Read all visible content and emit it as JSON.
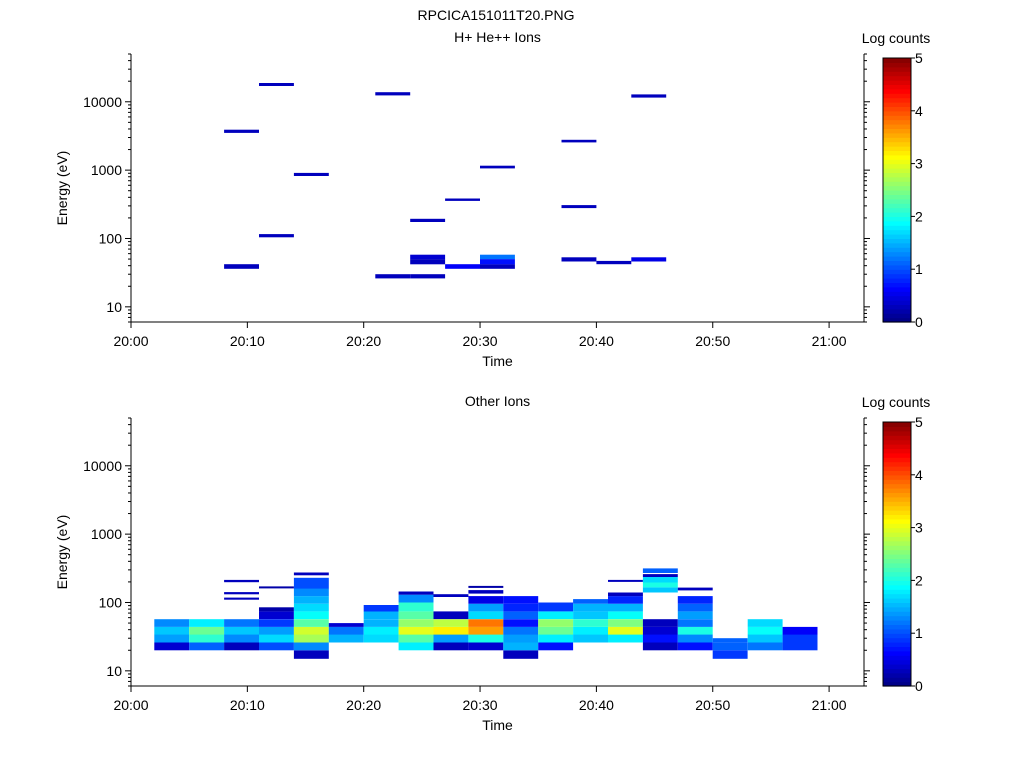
{
  "figure_title": "RPCICA151011T20.PNG",
  "colorbar": {
    "title": "Log counts",
    "range": [
      0,
      5
    ],
    "tick_labels": [
      "0",
      "1",
      "2",
      "3",
      "4",
      "5"
    ],
    "colormap": "jet"
  },
  "colors": {
    "background": "#ffffff",
    "axis": "#000000"
  },
  "chart_data": [
    {
      "type": "heatmap",
      "title": "H+ He++ Ions",
      "xlabel": "Time",
      "ylabel": "Energy (eV)",
      "y_scale": "log",
      "ylim": [
        6,
        50000
      ],
      "xlim": [
        "20:00",
        "21:03"
      ],
      "x_tick_labels": [
        "20:00",
        "20:10",
        "20:20",
        "20:30",
        "20:40",
        "20:50",
        "21:00"
      ],
      "y_tick_labels": [
        "10",
        "100",
        "1000",
        "10000"
      ],
      "cells": [
        {
          "t0": "20:08",
          "t1": "20:11",
          "e_lo": 36,
          "e_hi": 42,
          "value": 0.3
        },
        {
          "t0": "20:08",
          "t1": "20:11",
          "e_lo": 3500,
          "e_hi": 3900,
          "value": 0.3
        },
        {
          "t0": "20:11",
          "t1": "20:14",
          "e_lo": 104,
          "e_hi": 116,
          "value": 0.3
        },
        {
          "t0": "20:11",
          "t1": "20:14",
          "e_lo": 17000,
          "e_hi": 18800,
          "value": 0.3
        },
        {
          "t0": "20:14",
          "t1": "20:17",
          "e_lo": 820,
          "e_hi": 910,
          "value": 0.3
        },
        {
          "t0": "20:21",
          "t1": "20:24",
          "e_lo": 26,
          "e_hi": 30,
          "value": 0.3
        },
        {
          "t0": "20:21",
          "t1": "20:24",
          "e_lo": 12400,
          "e_hi": 13800,
          "value": 0.3
        },
        {
          "t0": "20:24",
          "t1": "20:27",
          "e_lo": 26,
          "e_hi": 30,
          "value": 0.3
        },
        {
          "t0": "20:24",
          "t1": "20:27",
          "e_lo": 42,
          "e_hi": 50,
          "value": 0.3
        },
        {
          "t0": "20:24",
          "t1": "20:27",
          "e_lo": 50,
          "e_hi": 58,
          "value": 0.4
        },
        {
          "t0": "20:24",
          "t1": "20:27",
          "e_lo": 174,
          "e_hi": 194,
          "value": 0.3
        },
        {
          "t0": "20:27",
          "t1": "20:30",
          "e_lo": 36,
          "e_hi": 42,
          "value": 0.6
        },
        {
          "t0": "20:27",
          "t1": "20:30",
          "e_lo": 355,
          "e_hi": 385,
          "value": 0.3
        },
        {
          "t0": "20:30",
          "t1": "20:33",
          "e_lo": 36,
          "e_hi": 42,
          "value": 0.3
        },
        {
          "t0": "20:30",
          "t1": "20:33",
          "e_lo": 42,
          "e_hi": 50,
          "value": 0.7
        },
        {
          "t0": "20:30",
          "t1": "20:33",
          "e_lo": 50,
          "e_hi": 58,
          "value": 1.2
        },
        {
          "t0": "20:30",
          "t1": "20:33",
          "e_lo": 1060,
          "e_hi": 1160,
          "value": 0.3
        },
        {
          "t0": "20:37",
          "t1": "20:40",
          "e_lo": 46,
          "e_hi": 53,
          "value": 0.3
        },
        {
          "t0": "20:37",
          "t1": "20:40",
          "e_lo": 278,
          "e_hi": 308,
          "value": 0.3
        },
        {
          "t0": "20:37",
          "t1": "20:40",
          "e_lo": 2550,
          "e_hi": 2780,
          "value": 0.3
        },
        {
          "t0": "20:40",
          "t1": "20:43",
          "e_lo": 42,
          "e_hi": 47,
          "value": 0.3
        },
        {
          "t0": "20:43",
          "t1": "20:46",
          "e_lo": 46,
          "e_hi": 53,
          "value": 0.5
        },
        {
          "t0": "20:43",
          "t1": "20:46",
          "e_lo": 11500,
          "e_hi": 12800,
          "value": 0.3
        }
      ]
    },
    {
      "type": "heatmap",
      "title": "Other Ions",
      "xlabel": "Time",
      "ylabel": "Energy (eV)",
      "y_scale": "log",
      "ylim": [
        6,
        50000
      ],
      "xlim": [
        "20:00",
        "21:03"
      ],
      "x_tick_labels": [
        "20:00",
        "20:10",
        "20:20",
        "20:30",
        "20:40",
        "20:50",
        "21:00"
      ],
      "y_tick_labels": [
        "10",
        "100",
        "1000",
        "10000"
      ],
      "columns": [
        {
          "t0": "20:02",
          "t1": "20:05",
          "cells": [
            [
              20,
              26,
              0.4
            ],
            [
              26,
              34,
              1.4
            ],
            [
              34,
              44,
              1.6
            ],
            [
              44,
              57,
              1.3
            ]
          ]
        },
        {
          "t0": "20:05",
          "t1": "20:08",
          "cells": [
            [
              20,
              26,
              1.1
            ],
            [
              26,
              34,
              2.1
            ],
            [
              34,
              44,
              2.4
            ],
            [
              44,
              57,
              1.8
            ]
          ]
        },
        {
          "t0": "20:08",
          "t1": "20:11",
          "cells": [
            [
              20,
              26,
              0.3
            ],
            [
              26,
              34,
              1.3
            ],
            [
              34,
              44,
              1.6
            ],
            [
              44,
              57,
              1.2
            ],
            [
              110,
              118,
              0.3
            ],
            [
              132,
              142,
              0.3
            ],
            [
              198,
              214,
              0.3
            ]
          ]
        },
        {
          "t0": "20:11",
          "t1": "20:14",
          "cells": [
            [
              20,
              26,
              1.0
            ],
            [
              26,
              34,
              1.7
            ],
            [
              34,
              44,
              1.4
            ],
            [
              44,
              57,
              0.9
            ],
            [
              57,
              74,
              0.4
            ],
            [
              74,
              85,
              0.2
            ],
            [
              166,
              172,
              0.2
            ]
          ]
        },
        {
          "t0": "20:14",
          "t1": "20:17",
          "cells": [
            [
              15,
              20,
              0.3
            ],
            [
              20,
              26,
              1.3
            ],
            [
              26,
              34,
              2.7
            ],
            [
              34,
              44,
              2.9
            ],
            [
              44,
              57,
              2.3
            ],
            [
              57,
              74,
              1.9
            ],
            [
              74,
              96,
              1.7
            ],
            [
              96,
              124,
              1.5
            ],
            [
              124,
              160,
              1.3
            ],
            [
              160,
              230,
              1.0
            ],
            [
              250,
              275,
              0.3
            ]
          ]
        },
        {
          "t0": "20:17",
          "t1": "20:20",
          "cells": [
            [
              26,
              34,
              1.5
            ],
            [
              34,
              44,
              1.2
            ],
            [
              44,
              50,
              0.4
            ]
          ]
        },
        {
          "t0": "20:20",
          "t1": "20:23",
          "cells": [
            [
              26,
              34,
              1.7
            ],
            [
              34,
              44,
              1.8
            ],
            [
              44,
              57,
              1.5
            ],
            [
              57,
              74,
              1.5
            ],
            [
              74,
              92,
              0.9
            ]
          ]
        },
        {
          "t0": "20:23",
          "t1": "20:26",
          "cells": [
            [
              20,
              26,
              1.8
            ],
            [
              26,
              34,
              2.3
            ],
            [
              34,
              44,
              3.0
            ],
            [
              44,
              57,
              2.6
            ],
            [
              57,
              74,
              2.3
            ],
            [
              74,
              100,
              2.1
            ],
            [
              100,
              130,
              1.3
            ],
            [
              130,
              145,
              0.3
            ]
          ]
        },
        {
          "t0": "20:26",
          "t1": "20:29",
          "cells": [
            [
              20,
              26,
              0.3
            ],
            [
              26,
              34,
              1.4
            ],
            [
              34,
              44,
              3.2
            ],
            [
              44,
              57,
              2.8
            ],
            [
              57,
              74,
              0.3
            ],
            [
              120,
              132,
              0.3
            ]
          ]
        },
        {
          "t0": "20:29",
          "t1": "20:32",
          "cells": [
            [
              20,
              26,
              0.4
            ],
            [
              26,
              34,
              2.0
            ],
            [
              34,
              44,
              3.6
            ],
            [
              44,
              57,
              3.8
            ],
            [
              57,
              74,
              1.7
            ],
            [
              74,
              96,
              1.4
            ],
            [
              96,
              124,
              0.5
            ],
            [
              135,
              152,
              0.3
            ],
            [
              165,
              175,
              0.2
            ]
          ]
        },
        {
          "t0": "20:32",
          "t1": "20:35",
          "cells": [
            [
              15,
              20,
              0.3
            ],
            [
              20,
              26,
              1.5
            ],
            [
              26,
              34,
              1.4
            ],
            [
              34,
              44,
              1.2
            ],
            [
              44,
              57,
              0.7
            ],
            [
              57,
              74,
              1.1
            ],
            [
              74,
              96,
              0.8
            ],
            [
              96,
              124,
              0.7
            ]
          ]
        },
        {
          "t0": "20:35",
          "t1": "20:38",
          "cells": [
            [
              20,
              26,
              0.7
            ],
            [
              26,
              34,
              1.8
            ],
            [
              34,
              44,
              2.4
            ],
            [
              44,
              57,
              2.6
            ],
            [
              57,
              74,
              1.8
            ],
            [
              74,
              100,
              0.9
            ]
          ]
        },
        {
          "t0": "20:38",
          "t1": "20:41",
          "cells": [
            [
              26,
              34,
              1.6
            ],
            [
              34,
              44,
              1.8
            ],
            [
              44,
              57,
              2.1
            ],
            [
              57,
              74,
              1.6
            ],
            [
              74,
              96,
              1.5
            ],
            [
              96,
              112,
              1.1
            ]
          ]
        },
        {
          "t0": "20:41",
          "t1": "20:44",
          "cells": [
            [
              26,
              34,
              1.8
            ],
            [
              34,
              44,
              3.0
            ],
            [
              44,
              57,
              2.5
            ],
            [
              57,
              74,
              1.9
            ],
            [
              74,
              96,
              1.5
            ],
            [
              96,
              124,
              0.8
            ],
            [
              124,
              140,
              0.3
            ],
            [
              200,
              214,
              0.3
            ]
          ]
        },
        {
          "t0": "20:44",
          "t1": "20:47",
          "cells": [
            [
              20,
              26,
              0.3
            ],
            [
              26,
              34,
              0.7
            ],
            [
              34,
              44,
              0.4
            ],
            [
              44,
              57,
              0.3
            ],
            [
              140,
              166,
              1.6
            ],
            [
              166,
              196,
              2.0
            ],
            [
              196,
              236,
              1.7
            ],
            [
              236,
              260,
              0.3
            ],
            [
              270,
              315,
              1.1
            ]
          ]
        },
        {
          "t0": "20:47",
          "t1": "20:50",
          "cells": [
            [
              20,
              26,
              0.7
            ],
            [
              26,
              34,
              1.3
            ],
            [
              34,
              44,
              2.0
            ],
            [
              44,
              57,
              1.2
            ],
            [
              57,
              74,
              1.4
            ],
            [
              74,
              96,
              1.1
            ],
            [
              96,
              124,
              0.8
            ],
            [
              150,
              165,
              0.3
            ]
          ]
        },
        {
          "t0": "20:50",
          "t1": "20:53",
          "cells": [
            [
              15,
              20,
              0.9
            ],
            [
              20,
              26,
              1.1
            ],
            [
              26,
              30,
              1.1
            ]
          ]
        },
        {
          "t0": "20:53",
          "t1": "20:56",
          "cells": [
            [
              20,
              26,
              1.2
            ],
            [
              26,
              34,
              1.6
            ],
            [
              34,
              44,
              1.9
            ],
            [
              44,
              57,
              1.7
            ]
          ]
        },
        {
          "t0": "20:56",
          "t1": "20:59",
          "cells": [
            [
              20,
              26,
              0.9
            ],
            [
              26,
              34,
              0.9
            ],
            [
              34,
              44,
              0.6
            ]
          ]
        }
      ]
    }
  ]
}
